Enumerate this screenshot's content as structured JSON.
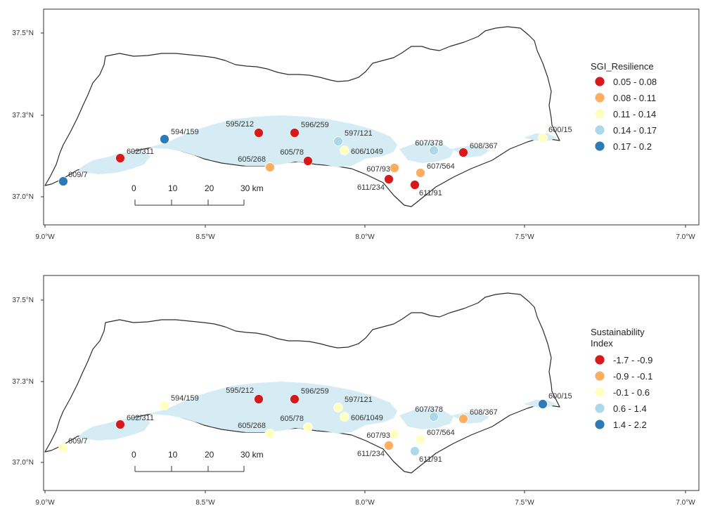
{
  "axes": {
    "x_ticks": [
      "9.0°W",
      "8.5°W",
      "8.0°W",
      "7.5°W",
      "7.0°W"
    ],
    "y_ticks": [
      "37.5°N",
      "37.3°N",
      "37.0°N"
    ]
  },
  "scale_bar": {
    "labels": [
      "0",
      "10",
      "20",
      "30 km"
    ]
  },
  "maps": [
    {
      "legend_title_lines": [
        "SGI_Resilience"
      ],
      "legend": [
        {
          "label": "0.05 - 0.08",
          "color": "#d7191c"
        },
        {
          "label": "0.08 - 0.11",
          "color": "#fdae61"
        },
        {
          "label": "0.11 - 0.14",
          "color": "#ffffbf"
        },
        {
          "label": "0.14 - 0.17",
          "color": "#abd9e9"
        },
        {
          "label": "0.17 - 0.2",
          "color": "#2c7bb6"
        }
      ],
      "points": [
        {
          "label": "609/7",
          "class": 4
        },
        {
          "label": "602/311",
          "class": 0
        },
        {
          "label": "594/159",
          "class": 4
        },
        {
          "label": "595/212",
          "class": 0
        },
        {
          "label": "596/259",
          "class": 0
        },
        {
          "label": "597/121",
          "class": 3
        },
        {
          "label": "606/1049",
          "class": 2
        },
        {
          "label": "605/268",
          "class": 1
        },
        {
          "label": "605/78",
          "class": 0
        },
        {
          "label": "607/93",
          "class": 1
        },
        {
          "label": "611/234",
          "class": 0
        },
        {
          "label": "611/91",
          "class": 0
        },
        {
          "label": "607/564",
          "class": 1
        },
        {
          "label": "607/378",
          "class": 3
        },
        {
          "label": "608/367",
          "class": 0
        },
        {
          "label": "600/15",
          "class": 2
        }
      ]
    },
    {
      "legend_title_lines": [
        "Sustainability",
        "Index"
      ],
      "legend": [
        {
          "label": "-1.7 - -0.9",
          "color": "#d7191c"
        },
        {
          "label": "-0.9 - -0.1",
          "color": "#fdae61"
        },
        {
          "label": "-0.1 - 0.6",
          "color": "#ffffbf"
        },
        {
          "label": "0.6 - 1.4",
          "color": "#abd9e9"
        },
        {
          "label": "1.4 - 2.2",
          "color": "#2c7bb6"
        }
      ],
      "points": [
        {
          "label": "609/7",
          "class": 2
        },
        {
          "label": "602/311",
          "class": 0
        },
        {
          "label": "594/159",
          "class": 2
        },
        {
          "label": "595/212",
          "class": 0
        },
        {
          "label": "596/259",
          "class": 0
        },
        {
          "label": "597/121",
          "class": 2
        },
        {
          "label": "606/1049",
          "class": 2
        },
        {
          "label": "605/268",
          "class": 2
        },
        {
          "label": "605/78",
          "class": 2
        },
        {
          "label": "607/93",
          "class": 2
        },
        {
          "label": "611/234",
          "class": 1
        },
        {
          "label": "611/91",
          "class": 3
        },
        {
          "label": "607/564",
          "class": 2
        },
        {
          "label": "607/378",
          "class": 3
        },
        {
          "label": "608/367",
          "class": 1
        },
        {
          "label": "600/15",
          "class": 4
        }
      ]
    }
  ]
}
